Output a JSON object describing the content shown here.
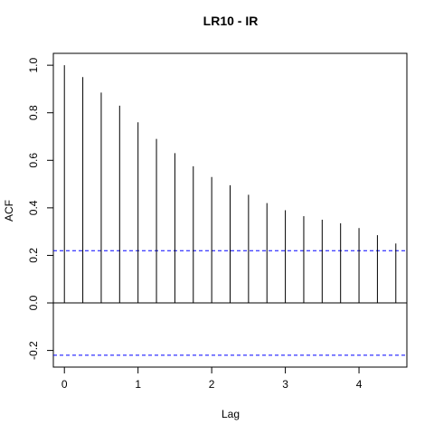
{
  "chart_data": {
    "type": "bar",
    "title": "LR10 - IR",
    "xlabel": "Lag",
    "ylabel": "ACF",
    "xlim": [
      -0.15,
      4.65
    ],
    "ylim": [
      -0.27,
      1.05
    ],
    "x_ticks": [
      "0",
      "1",
      "2",
      "3",
      "4"
    ],
    "y_ticks": [
      "-0.2",
      "0.0",
      "0.2",
      "0.4",
      "0.6",
      "0.8",
      "1.0"
    ],
    "x": [
      0,
      0.25,
      0.5,
      0.75,
      1.0,
      1.25,
      1.5,
      1.75,
      2.0,
      2.25,
      2.5,
      2.75,
      3.0,
      3.25,
      3.5,
      3.75,
      4.0,
      4.25,
      4.5
    ],
    "values": [
      1.0,
      0.95,
      0.885,
      0.83,
      0.76,
      0.69,
      0.63,
      0.575,
      0.53,
      0.495,
      0.455,
      0.42,
      0.39,
      0.365,
      0.35,
      0.335,
      0.315,
      0.285,
      0.25
    ],
    "confidence_bound": 0.22,
    "colors": {
      "bars": "#000000",
      "zero_line": "#000000",
      "confidence_lines": "#0000ff"
    },
    "grid": false
  }
}
